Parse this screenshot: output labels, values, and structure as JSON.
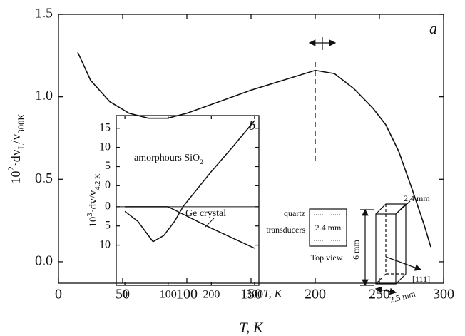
{
  "chart_data": [
    {
      "type": "line",
      "panel_label": "a",
      "xlabel": "T, K",
      "ylabel": [
        "10",
        "2",
        "·dv",
        "L",
        "/v",
        "300K"
      ],
      "x": [
        15,
        25,
        40,
        55,
        70,
        85,
        100,
        125,
        150,
        175,
        200,
        215,
        230,
        245,
        255,
        265,
        275,
        285,
        290
      ],
      "values": [
        1.27,
        1.1,
        0.97,
        0.9,
        0.87,
        0.87,
        0.9,
        0.97,
        1.04,
        1.1,
        1.16,
        1.14,
        1.05,
        0.93,
        0.83,
        0.67,
        0.45,
        0.22,
        0.09
      ],
      "color": "#111111",
      "xlim": [
        0,
        300
      ],
      "ylim": [
        -0.13,
        1.5
      ],
      "xticks": [
        0,
        50,
        100,
        150,
        200,
        250,
        300
      ],
      "yticks": [
        {
          "value": 0,
          "label": "0.0"
        },
        {
          "value": 0.5,
          "label": "0.5"
        },
        {
          "value": 1,
          "label": "1.0"
        },
        {
          "value": 1.5,
          "label": "1.5"
        }
      ],
      "annotations": [
        "quartz",
        "transducers",
        "2.4 mm",
        "Top view",
        "6 mm",
        "2.4 mm",
        "2.5 mm",
        "[111]"
      ]
    },
    {
      "type": "line",
      "panel_label": "b",
      "xlabel": "T, K",
      "ylabel": [
        "10",
        "3",
        "·dv/v",
        "4.2 K"
      ],
      "curve_labels": [
        [
          "amorphours SiO",
          "2"
        ],
        [
          "Ge crystal"
        ]
      ],
      "x": [
        0,
        30,
        65,
        90,
        115,
        135,
        200,
        250,
        300
      ],
      "series": [
        {
          "color": "#111111",
          "values": [
            -6.7,
            -9.3,
            -14.6,
            -13,
            -9.3,
            -5.4,
            3.7,
            10.2,
            17
          ]
        },
        {
          "color": "#111111",
          "x": [
            0,
            100,
            150,
            200,
            250,
            300
          ],
          "values": [
            -5.5,
            -5.5,
            -8.3,
            -11.1,
            -13.7,
            -16.3
          ]
        }
      ],
      "xlim": [
        -20,
        310
      ],
      "ylim": [
        -26,
        18.3
      ],
      "xticks": [
        0,
        100,
        200,
        300
      ],
      "yticks": [
        15,
        10,
        5,
        0,
        {
          "value": -5.5,
          "label": "0"
        },
        {
          "value": -10.5,
          "label": "5"
        },
        {
          "value": -15.5,
          "label": "10"
        }
      ]
    }
  ]
}
